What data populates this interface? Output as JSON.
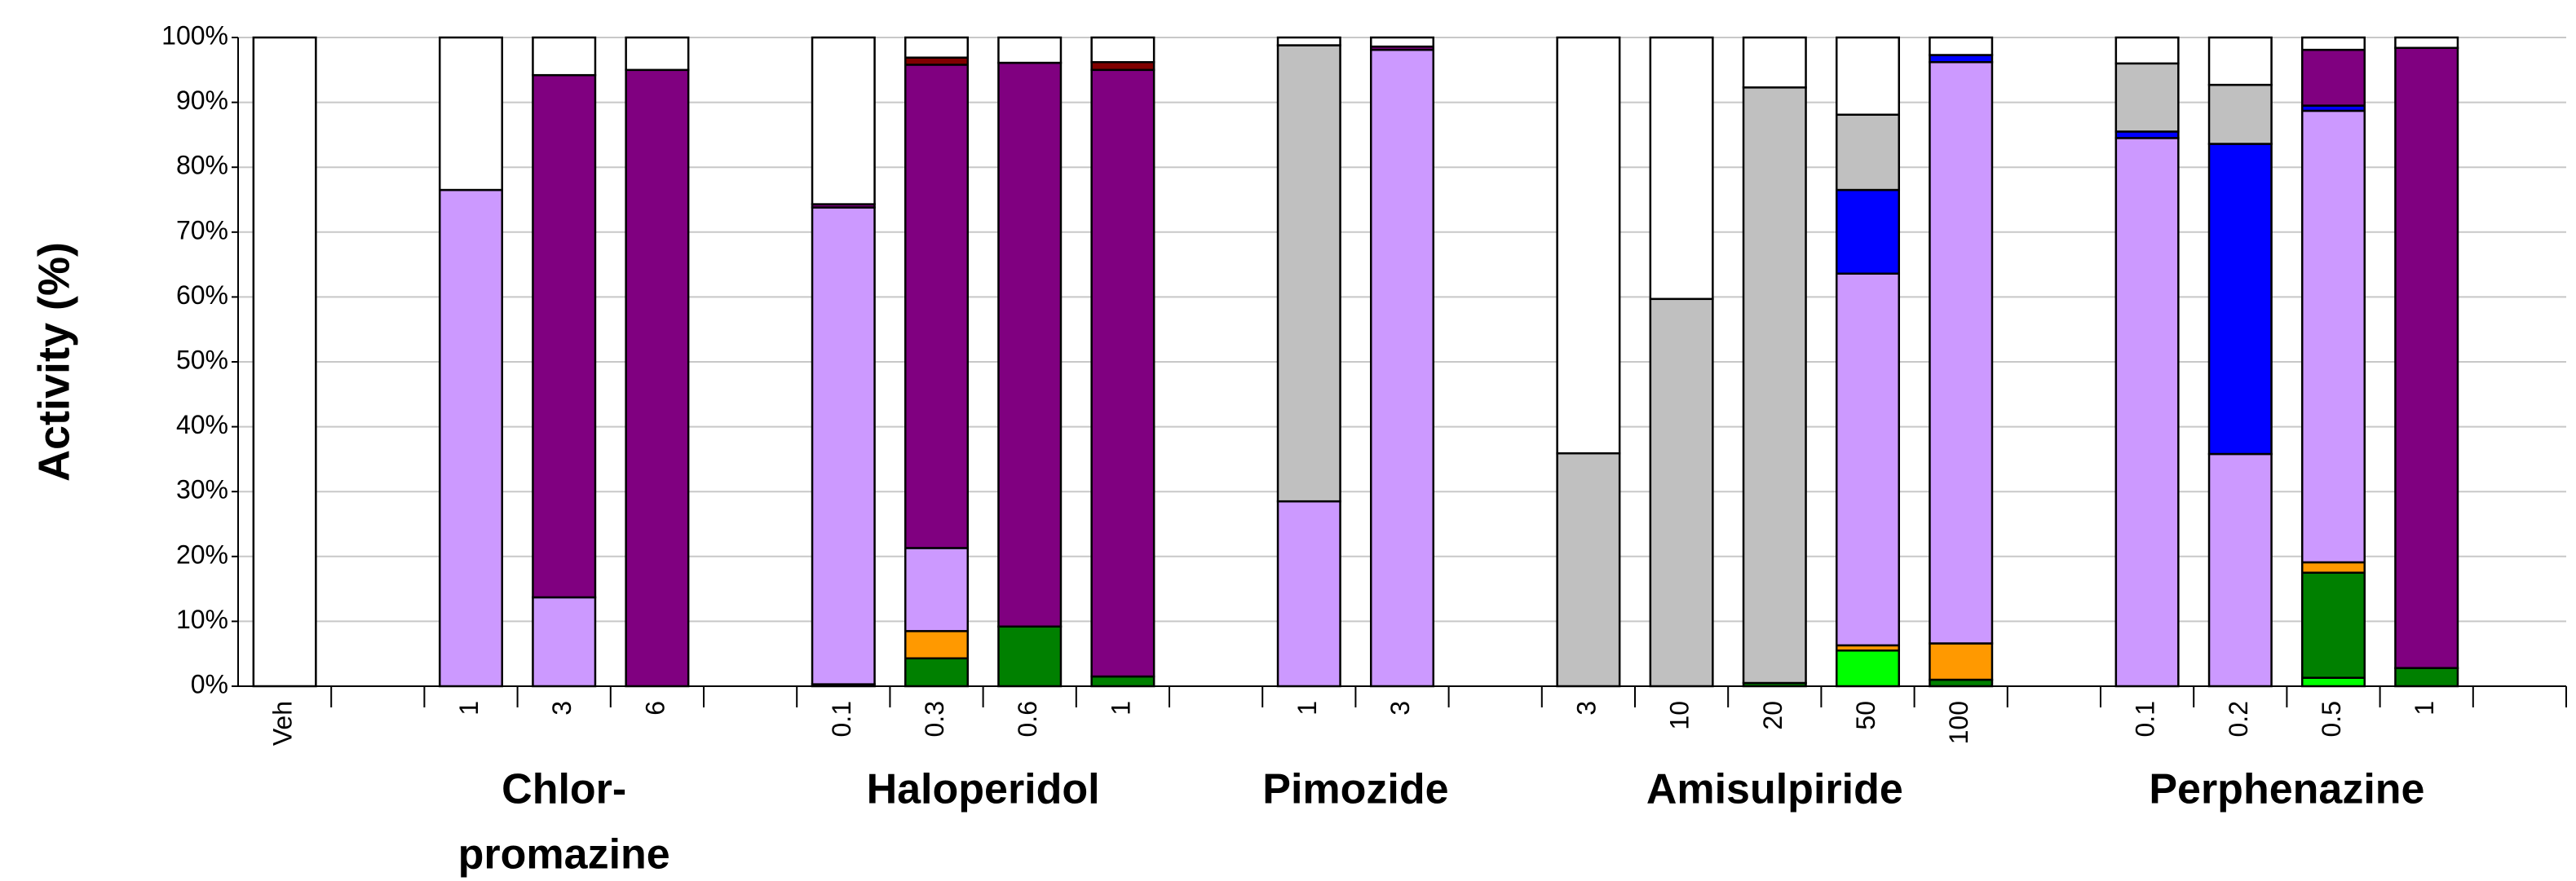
{
  "chart_data": {
    "type": "stacked_bar",
    "ylabel": "Activity (%)",
    "categories": [
      "Veh",
      null,
      "1",
      "3",
      "6",
      null,
      "0.1",
      "0.3",
      "0.6",
      "1",
      null,
      "1",
      "3",
      null,
      "3",
      "10",
      "20",
      "50",
      "100",
      null,
      "0.1",
      "0.2",
      "0.5",
      "1",
      null
    ],
    "groups": [
      [
        "Chlor-",
        "promazine"
      ],
      [
        "Haloperidol"
      ],
      [
        "Pimozide"
      ],
      [
        "Amisulpiride"
      ],
      [
        "Perphenazine"
      ]
    ],
    "series": [
      {
        "color": "#00ff00",
        "values": [
          null,
          null,
          null,
          null,
          null,
          null,
          null,
          null,
          null,
          null,
          null,
          null,
          null,
          null,
          null,
          null,
          null,
          5.5,
          null,
          null,
          null,
          null,
          1.3,
          null,
          null
        ]
      },
      {
        "color": "#008000",
        "values": [
          null,
          null,
          null,
          null,
          null,
          null,
          0.3,
          4.3,
          9.2,
          1.5,
          null,
          null,
          null,
          null,
          null,
          null,
          0.5,
          null,
          1,
          null,
          null,
          null,
          16.2,
          2.8,
          null
        ]
      },
      {
        "color": "#ff9900",
        "values": [
          null,
          null,
          null,
          null,
          null,
          null,
          null,
          4.2,
          null,
          null,
          null,
          null,
          null,
          null,
          null,
          null,
          null,
          0.8,
          5.6,
          null,
          null,
          null,
          1.6,
          null,
          null
        ]
      },
      {
        "color": "#cc99ff",
        "values": [
          null,
          null,
          76.5,
          13.7,
          null,
          null,
          73.5,
          12.8,
          null,
          null,
          null,
          28.5,
          98.1,
          null,
          null,
          null,
          null,
          57.3,
          89.6,
          null,
          84.5,
          35.8,
          69.6,
          null,
          null
        ]
      },
      {
        "color": "#0000ff",
        "values": [
          null,
          null,
          null,
          null,
          null,
          null,
          null,
          null,
          null,
          null,
          null,
          null,
          null,
          null,
          null,
          null,
          null,
          12.9,
          1.1,
          null,
          1.0,
          47.8,
          0.8,
          null,
          null
        ]
      },
      {
        "color": "#c0c0c0",
        "values": [
          null,
          null,
          null,
          null,
          null,
          null,
          null,
          null,
          null,
          null,
          null,
          70.3,
          null,
          null,
          35.9,
          59.7,
          91.8,
          11.6,
          null,
          null,
          10.5,
          9.1,
          null,
          null,
          null
        ]
      },
      {
        "color": "#800080",
        "values": [
          null,
          null,
          null,
          80.5,
          95,
          null,
          0.5,
          74.5,
          86.9,
          93.5,
          null,
          null,
          0.5,
          null,
          null,
          null,
          null,
          null,
          null,
          null,
          null,
          null,
          8.6,
          95.6,
          null
        ]
      },
      {
        "color": "#800000",
        "values": [
          null,
          null,
          null,
          null,
          null,
          null,
          null,
          1.1,
          null,
          1.2,
          null,
          null,
          null,
          null,
          null,
          null,
          null,
          null,
          null,
          null,
          null,
          null,
          null,
          null,
          null
        ]
      },
      {
        "color": "#ffffff",
        "values": [
          100,
          null,
          23.5,
          5.8,
          5,
          null,
          25.7,
          3.1,
          3.9,
          3.8,
          null,
          1.2,
          1.4,
          null,
          64.1,
          40.3,
          7.7,
          11.9,
          2.7,
          null,
          4,
          7.3,
          1.9,
          1.6,
          null
        ]
      }
    ],
    "ylim": [
      0,
      100
    ],
    "yticks": [
      {
        "value": 0,
        "label": "0%"
      },
      {
        "value": 10,
        "label": "10%"
      },
      {
        "value": 20,
        "label": "20%"
      },
      {
        "value": 30,
        "label": "30%"
      },
      {
        "value": 40,
        "label": "40%"
      },
      {
        "value": 50,
        "label": "50%"
      },
      {
        "value": 60,
        "label": "60%"
      },
      {
        "value": 70,
        "label": "70%"
      },
      {
        "value": 80,
        "label": "80%"
      },
      {
        "value": 90,
        "label": "90%"
      },
      {
        "value": 100,
        "label": "100%"
      }
    ],
    "grid": true
  }
}
